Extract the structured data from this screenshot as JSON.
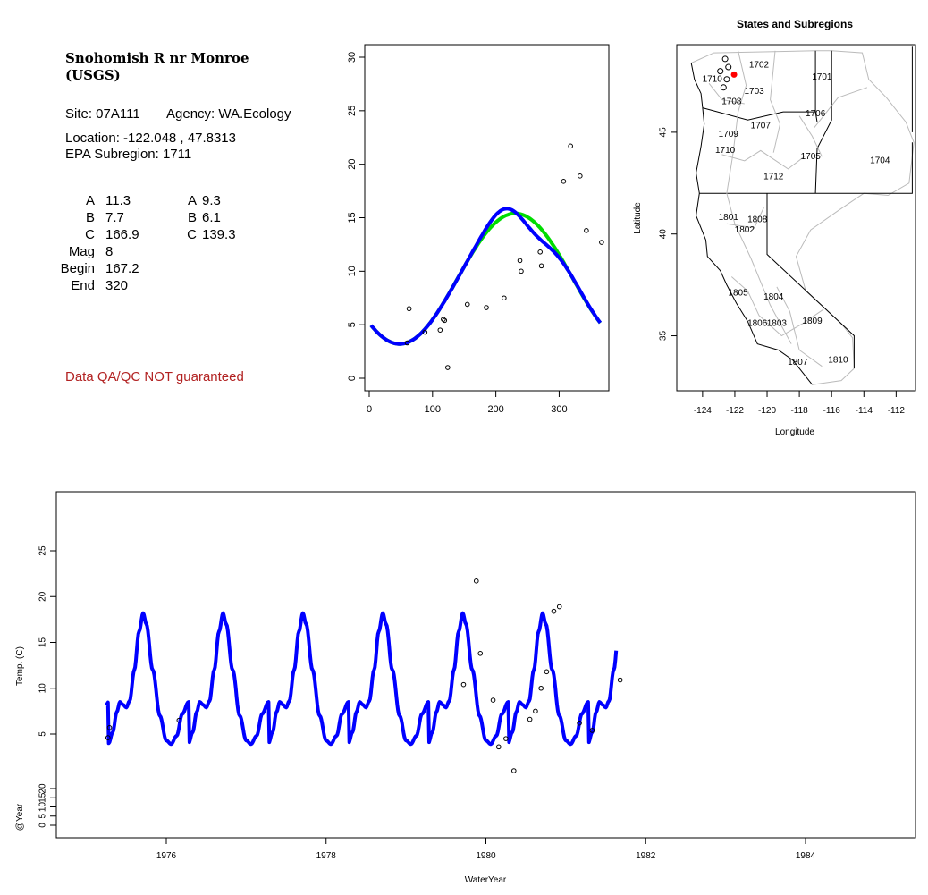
{
  "info": {
    "station_title": "Snohomish R nr Monroe",
    "station_source": "(USGS)",
    "site": "Site: 07A111",
    "agency": "Agency: WA.Ecology",
    "location": "Location: -122.048 , 47.8313",
    "subregion": "EPA Subregion: 1711",
    "params": [
      {
        "label": "A",
        "v1": "11.3",
        "l2": "A",
        "v2": "9.3"
      },
      {
        "label": "B",
        "v1": "7.7",
        "l2": "B",
        "v2": "6.1"
      },
      {
        "label": "C",
        "v1": "166.9",
        "l2": "C",
        "v2": "139.3"
      },
      {
        "label": "Mag",
        "v1": "8",
        "l2": "",
        "v2": ""
      },
      {
        "label": "Begin",
        "v1": "167.2",
        "l2": "",
        "v2": ""
      },
      {
        "label": "End",
        "v1": "320",
        "l2": "",
        "v2": ""
      }
    ],
    "qa_note": "Data QA/QC NOT guaranteed",
    "qa_color": "#b22222"
  },
  "colors": {
    "blue_fit": "#0000ff",
    "green_fit": "#00dd00",
    "highlight": "#ff0000",
    "state_border": "#000000",
    "subregion_border": "#bbbbbb"
  },
  "chart_data": [
    {
      "type": "scatter",
      "title": "",
      "xlabel": "",
      "ylabel": "",
      "xlim": [
        0,
        370
      ],
      "ylim": [
        0,
        30
      ],
      "xticks": [
        "0",
        "100",
        "200",
        "300"
      ],
      "yticks": [
        "0",
        "5",
        "10",
        "15",
        "20",
        "25",
        "30"
      ],
      "points": [
        [
          60,
          3.3
        ],
        [
          63,
          6.5
        ],
        [
          88,
          4.3
        ],
        [
          112,
          4.5
        ],
        [
          117,
          5.5
        ],
        [
          119,
          5.4
        ],
        [
          124,
          1.0
        ],
        [
          155,
          6.9
        ],
        [
          185,
          6.6
        ],
        [
          213,
          7.5
        ],
        [
          238,
          11.0
        ],
        [
          240,
          10.0
        ],
        [
          270,
          11.8
        ],
        [
          272,
          10.5
        ],
        [
          307,
          18.4
        ],
        [
          318,
          21.7
        ],
        [
          333,
          18.9
        ],
        [
          343,
          13.8
        ],
        [
          367,
          12.7
        ]
      ],
      "series": [
        {
          "name": "",
          "color": "#0000ff",
          "A": 9.3,
          "B": 6.1,
          "C": 139.3,
          "Mag": 8,
          "Begin": 167.2,
          "End": 320
        },
        {
          "name": "",
          "color": "#00dd00",
          "A": 9.3,
          "B": 6.1,
          "C": 139.3
        }
      ]
    },
    {
      "type": "map",
      "title": "States and Subregions",
      "xlabel": "Longitude",
      "ylabel": "Latitude",
      "xlim": [
        -125.6,
        -110.8
      ],
      "ylim": [
        32.3,
        49.3
      ],
      "xticks": [
        "-124",
        "-122",
        "-120",
        "-118",
        "-116",
        "-114",
        "-112"
      ],
      "yticks": [
        "35",
        "40",
        "45"
      ],
      "subregions": [
        {
          "label": "1702",
          "lon": -120.5,
          "lat": 48.3
        },
        {
          "label": "1701",
          "lon": -116.6,
          "lat": 47.7
        },
        {
          "label": "1710",
          "lon": -123.4,
          "lat": 47.6
        },
        {
          "label": "1703",
          "lon": -120.8,
          "lat": 47.0
        },
        {
          "label": "1708",
          "lon": -122.2,
          "lat": 46.5
        },
        {
          "label": "1706",
          "lon": -117.0,
          "lat": 45.9
        },
        {
          "label": "1707",
          "lon": -120.4,
          "lat": 45.3
        },
        {
          "label": "1709",
          "lon": -122.4,
          "lat": 44.9
        },
        {
          "label": "1710",
          "lon": -122.6,
          "lat": 44.1
        },
        {
          "label": "1705",
          "lon": -117.3,
          "lat": 43.8
        },
        {
          "label": "1704",
          "lon": -113.0,
          "lat": 43.6
        },
        {
          "label": "1712",
          "lon": -119.6,
          "lat": 42.8
        },
        {
          "label": "1801",
          "lon": -122.4,
          "lat": 40.8
        },
        {
          "label": "1808",
          "lon": -120.6,
          "lat": 40.7
        },
        {
          "label": "1802",
          "lon": -121.4,
          "lat": 40.2
        },
        {
          "label": "1805",
          "lon": -121.8,
          "lat": 37.1
        },
        {
          "label": "1804",
          "lon": -119.6,
          "lat": 36.9
        },
        {
          "label": "1809",
          "lon": -117.2,
          "lat": 35.7
        },
        {
          "label": "1806",
          "lon": -120.6,
          "lat": 35.6
        },
        {
          "label": "1803",
          "lon": -119.4,
          "lat": 35.6
        },
        {
          "label": "1807",
          "lon": -118.1,
          "lat": 33.7
        },
        {
          "label": "1810",
          "lon": -115.6,
          "lat": 33.8
        }
      ],
      "site": {
        "lon": -122.048,
        "lat": 47.8313
      }
    },
    {
      "type": "line",
      "title": "",
      "xlabel": "WaterYear",
      "ylabel": "Temp. (C)",
      "ylabel2": "@Year",
      "xlim": [
        1974.5,
        1985.4
      ],
      "ylim": [
        -9.7,
        30.5
      ],
      "xticks": [
        "1976",
        "1978",
        "1980",
        "1982",
        "1984"
      ],
      "yticks": [
        "5",
        "10",
        "15",
        "20",
        "25"
      ],
      "yticks2": [
        "0",
        "5",
        "10",
        "15",
        "20"
      ],
      "fit_range": [
        1975.25,
        1981.63
      ],
      "points": [
        [
          1975.27,
          4.6
        ],
        [
          1975.29,
          5.7
        ],
        [
          1976.16,
          6.5
        ],
        [
          1979.72,
          10.4
        ],
        [
          1979.88,
          21.7
        ],
        [
          1979.93,
          13.8
        ],
        [
          1980.09,
          8.7
        ],
        [
          1980.16,
          3.6
        ],
        [
          1980.25,
          4.5
        ],
        [
          1980.35,
          1.0
        ],
        [
          1980.55,
          6.6
        ],
        [
          1980.62,
          7.5
        ],
        [
          1980.69,
          10.0
        ],
        [
          1980.76,
          11.8
        ],
        [
          1980.85,
          18.4
        ],
        [
          1980.92,
          18.9
        ],
        [
          1981.17,
          6.2
        ],
        [
          1981.33,
          5.4
        ],
        [
          1981.68,
          10.9
        ]
      ]
    }
  ]
}
